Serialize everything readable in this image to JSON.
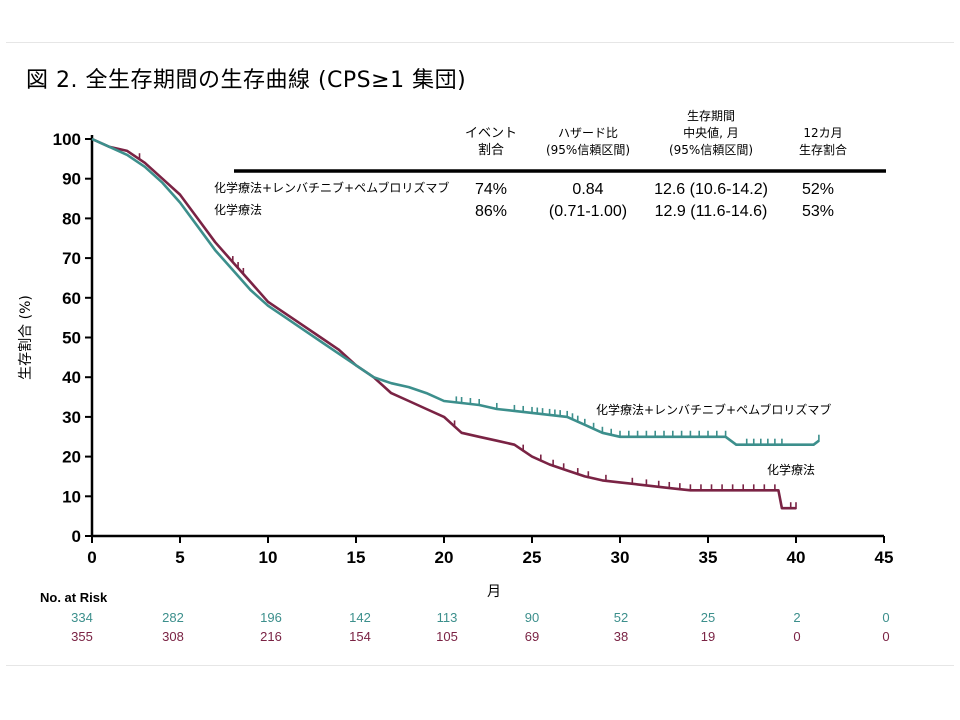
{
  "title": "図 2. 全生存期間の生存曲線 (CPS≥1 集団)",
  "colors": {
    "combo": "#3c8f8c",
    "chemo": "#7a2344"
  },
  "table": {
    "headers": [
      [
        "イベント",
        "割合"
      ],
      [
        "ハザード比",
        "(95%信頼区間)"
      ],
      [
        "生存期間",
        "中央値, 月",
        "(95%信頼区間)"
      ],
      [
        "12カ月",
        "生存割合"
      ]
    ],
    "rows": [
      {
        "label": "化学療法+レンバチニブ+ペムブロリズマブ",
        "event": "74%",
        "hr": "0.84",
        "median": "12.6 (10.6-14.2)",
        "m12": "52%"
      },
      {
        "label": "化学療法",
        "event": "86%",
        "hr": "(0.71-1.00)",
        "median": "12.9 (11.6-14.6)",
        "m12": "53%"
      }
    ]
  },
  "risk": {
    "title": "No. at Risk",
    "times": [
      0,
      5,
      10,
      15,
      20,
      25,
      30,
      35,
      40,
      45
    ],
    "combo": [
      "334",
      "282",
      "196",
      "142",
      "113",
      "90",
      "52",
      "25",
      "2",
      "0"
    ],
    "chemo": [
      "355",
      "308",
      "216",
      "154",
      "105",
      "69",
      "38",
      "19",
      "0",
      "0"
    ]
  },
  "chart_data": {
    "type": "line",
    "title": "図 2. 全生存期間の生存曲線 (CPS≥1 集団)",
    "xlabel": "月",
    "ylabel": "生存割合 (%)",
    "xlim": [
      0,
      45
    ],
    "ylim": [
      0,
      100
    ],
    "xticks": [
      0,
      5,
      10,
      15,
      20,
      25,
      30,
      35,
      40,
      45
    ],
    "yticks": [
      0,
      10,
      20,
      30,
      40,
      50,
      60,
      70,
      80,
      90,
      100
    ],
    "grid": false,
    "series": [
      {
        "name": "化学療法+レンバチニブ+ペムブロリズマブ",
        "color": "#3c8f8c",
        "x": [
          0,
          1,
          2,
          3,
          4,
          5,
          6,
          7,
          8,
          9,
          10,
          11,
          12,
          13,
          14,
          15,
          16,
          17,
          18,
          19,
          20,
          21,
          22,
          23,
          24,
          25,
          26,
          27,
          28,
          29,
          30,
          31,
          32,
          33,
          34,
          35,
          36,
          36.6,
          37,
          38,
          39,
          40,
          41,
          41.3
        ],
        "y": [
          100,
          98,
          96,
          93,
          89,
          84,
          78,
          72,
          67,
          62,
          58,
          55,
          52,
          49,
          46,
          43,
          40,
          38.5,
          37.5,
          36,
          34,
          33.5,
          33,
          32,
          31.5,
          31,
          30.5,
          30,
          28,
          26,
          25,
          25,
          25,
          25,
          25,
          25,
          25,
          23,
          23,
          23,
          23,
          23,
          23,
          24
        ],
        "censor_x": [
          20.7,
          21,
          21.5,
          22,
          23,
          24,
          24.5,
          25,
          25.3,
          25.6,
          26,
          26.3,
          26.6,
          27,
          27.3,
          27.6,
          28,
          28.5,
          29,
          29.5,
          30,
          30.5,
          31,
          31.5,
          32,
          32.5,
          33,
          33.5,
          34,
          34.5,
          35,
          35.5,
          36,
          37.2,
          37.6,
          38,
          38.4,
          38.8,
          39.2,
          41.3
        ]
      },
      {
        "name": "化学療法",
        "color": "#7a2344",
        "x": [
          0,
          1,
          2,
          3,
          4,
          5,
          6,
          7,
          8,
          9,
          10,
          11,
          12,
          13,
          14,
          15,
          16,
          17,
          18,
          19,
          20,
          21,
          22,
          23,
          24,
          25,
          26,
          27,
          28,
          29,
          30,
          31,
          32,
          33,
          34,
          35,
          36,
          37,
          38,
          39,
          39.2,
          40
        ],
        "y": [
          100,
          98,
          97,
          94,
          90,
          86,
          80,
          74,
          69,
          64,
          59,
          56,
          53,
          50,
          47,
          43,
          40,
          36,
          34,
          32,
          30,
          26,
          25,
          24,
          23,
          20,
          18,
          16.5,
          15,
          14,
          13.5,
          13,
          12.5,
          12,
          11.5,
          11.5,
          11.5,
          11.5,
          11.5,
          11.5,
          7,
          7
        ],
        "censor_x": [
          2.7,
          8,
          8.3,
          8.6,
          20.6,
          24.5,
          25.5,
          26.2,
          26.8,
          27.6,
          28.2,
          29.2,
          30.7,
          31.5,
          32.2,
          32.8,
          33.4,
          34,
          34.6,
          35.2,
          35.8,
          36.4,
          37,
          37.6,
          38.2,
          38.8,
          39.7,
          40
        ]
      }
    ],
    "annotations": [
      "化学療法+レンバチニブ+ペムブロリズマブ",
      "化学療法"
    ]
  }
}
